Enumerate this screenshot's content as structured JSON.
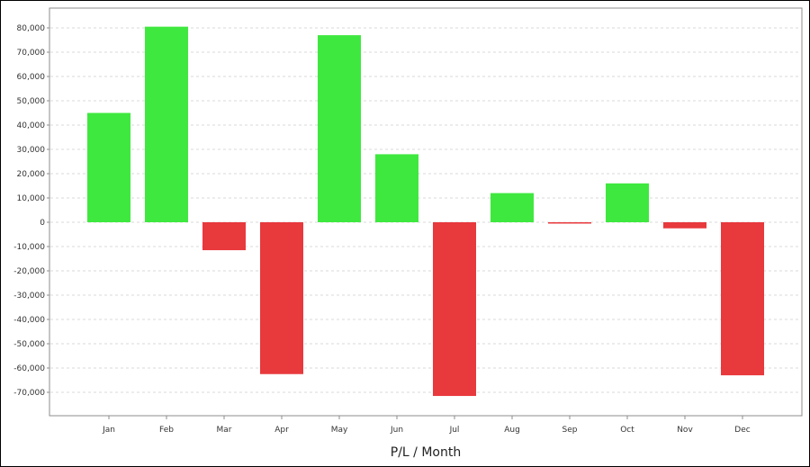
{
  "chart_data": {
    "type": "bar",
    "title": "",
    "xlabel": "P/L / Month",
    "ylabel": "",
    "categories": [
      "Jan",
      "Feb",
      "Mar",
      "Apr",
      "May",
      "Jun",
      "Jul",
      "Aug",
      "Sep",
      "Oct",
      "Nov",
      "Dec"
    ],
    "values": [
      45000,
      80500,
      -11500,
      -62500,
      77000,
      28000,
      -71500,
      12000,
      -500,
      16000,
      -2500,
      -63000
    ],
    "ylim": [
      -80000,
      80000
    ],
    "yticks": [
      80000,
      70000,
      60000,
      50000,
      40000,
      30000,
      20000,
      10000,
      0,
      -10000,
      -20000,
      -30000,
      -40000,
      -50000,
      -60000,
      -70000
    ],
    "ytick_labels": [
      "80,000",
      "70,000",
      "60,000",
      "50,000",
      "40,000",
      "30,000",
      "20,000",
      "10,000",
      "0",
      "-10,000",
      "-20,000",
      "-30,000",
      "-40,000",
      "-50,000",
      "-60,000",
      "-70,000"
    ],
    "grid": true,
    "legend": "none",
    "colors": {
      "positive": "#3fe83f",
      "negative": "#e8393d"
    }
  }
}
